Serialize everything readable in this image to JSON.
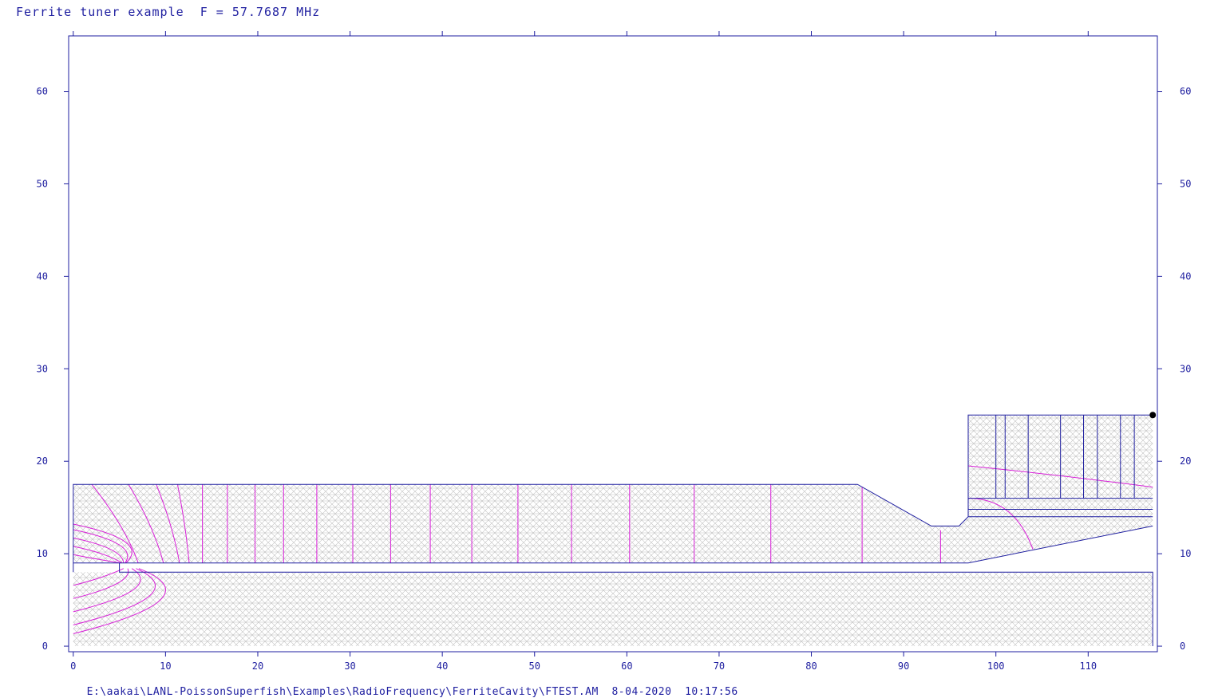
{
  "header": {
    "title": "Ferrite tuner example  F = 57.7687 MHz"
  },
  "footer": {
    "path": "E:\\aakai\\LANL-PoissonSuperfish\\Examples\\RadioFrequency\\FerriteCavity\\FTEST.AM",
    "date": "8-04-2020",
    "time": "10:17:56"
  },
  "colors": {
    "axis": "#1f1fa0",
    "mesh": "#b8b8b8",
    "field_lines": "#d81fd8",
    "boundary": "#1f1fa0"
  },
  "chart_data": {
    "type": "diagram",
    "x_ticks": [
      0,
      10,
      20,
      30,
      40,
      50,
      60,
      70,
      80,
      90,
      100,
      110
    ],
    "y_ticks": [
      0,
      10,
      20,
      30,
      40,
      50,
      60
    ],
    "xlim": [
      -0.5,
      117.5
    ],
    "ylim": [
      -0.6,
      66
    ],
    "cavity_outline": [
      [
        0,
        8
      ],
      [
        0,
        17.5
      ],
      [
        85,
        17.5
      ],
      [
        93,
        13
      ],
      [
        96,
        13
      ],
      [
        97,
        14
      ],
      [
        117,
        14
      ]
    ],
    "tuner_box": [
      [
        97,
        14
      ],
      [
        97,
        25
      ],
      [
        117,
        25
      ]
    ],
    "inner_conductor": [
      [
        0,
        8
      ],
      [
        5,
        8
      ],
      [
        5,
        9
      ],
      [
        97,
        9
      ],
      [
        117,
        13
      ]
    ],
    "beam_region": [
      [
        0,
        0
      ],
      [
        117,
        0
      ],
      [
        117,
        8
      ],
      [
        0,
        8
      ]
    ],
    "ferrite_lines_y": [
      14.8,
      16
    ],
    "tuner_vertical_x": [
      100,
      101,
      103.5,
      107,
      109.5,
      111,
      113.5,
      115
    ],
    "field_lines_x": [
      2,
      6,
      9,
      11.3,
      14,
      16.7,
      19.7,
      22.8,
      26.4,
      30.3,
      34.4,
      38.7,
      43.2,
      48.2,
      54,
      60.3,
      67.3,
      75.6,
      85.5,
      94
    ],
    "marker_point": [
      117,
      25
    ]
  }
}
